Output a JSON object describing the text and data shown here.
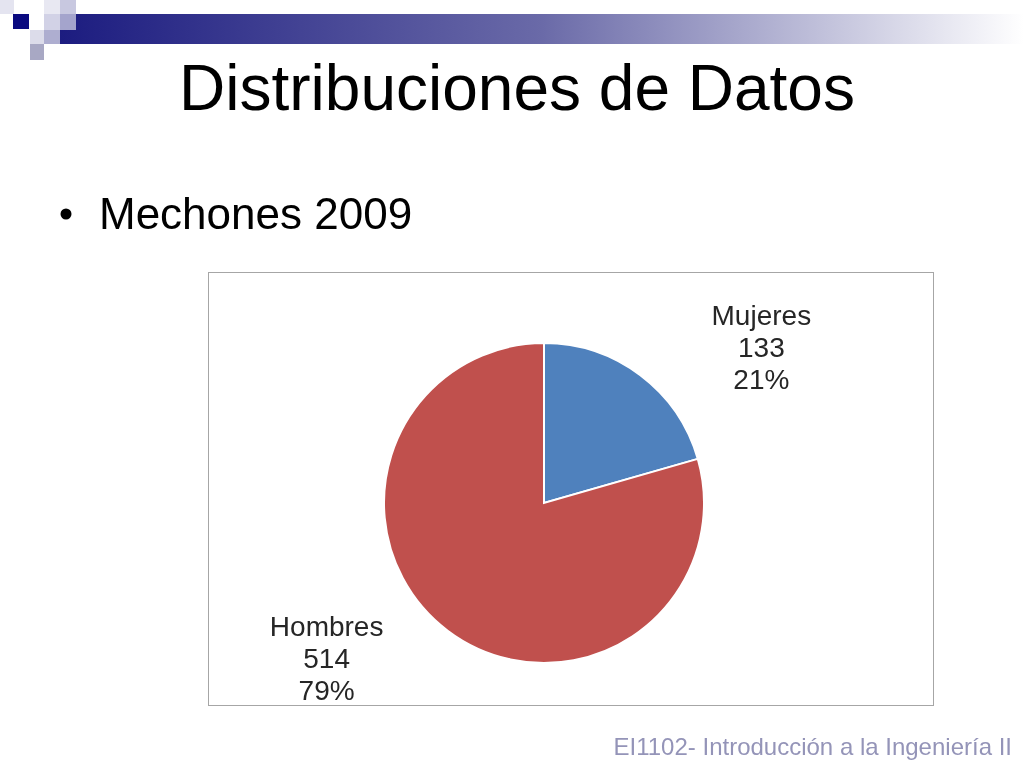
{
  "chart_data": {
    "type": "pie",
    "title": "Distribuciones de Datos",
    "subtitle": "Mechones 2009",
    "categories": [
      "Mujeres",
      "Hombres"
    ],
    "values": [
      133,
      514
    ],
    "colors": [
      "#4f81bd",
      "#c0504d"
    ],
    "value_labels": [
      "133\n21%",
      "514\n79%"
    ],
    "annotations": [
      "EI1102- Introducción a la Ingeniería II"
    ]
  }
}
